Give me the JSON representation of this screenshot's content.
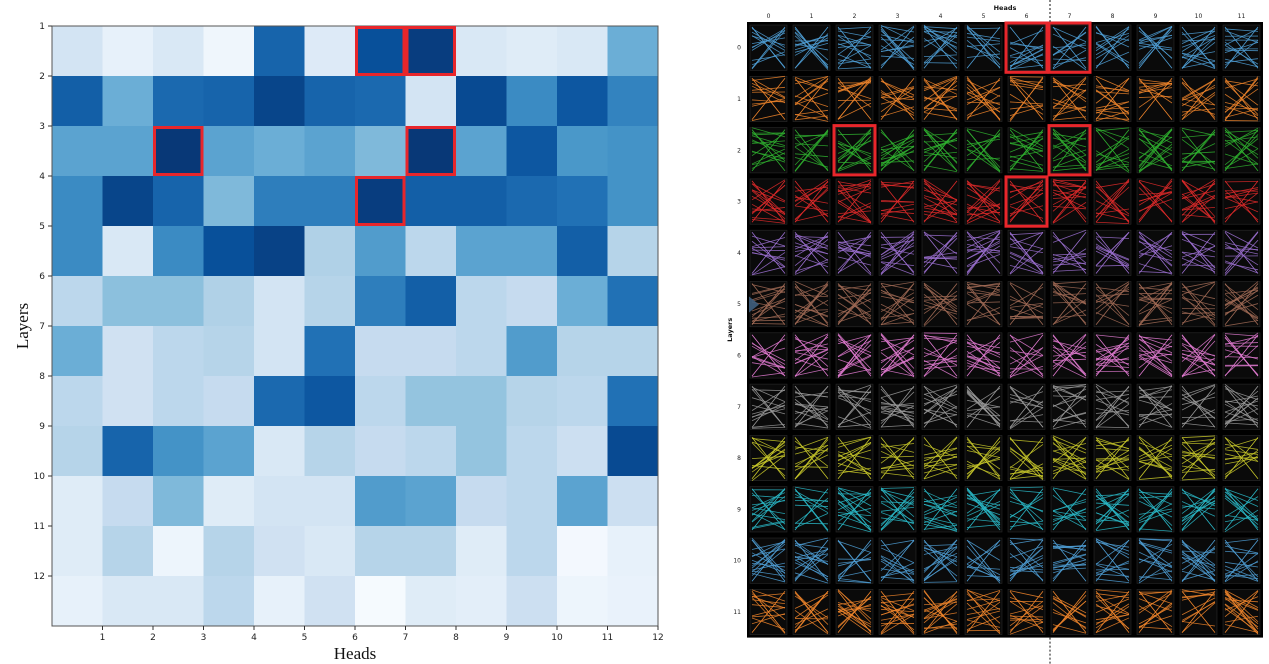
{
  "chart_data": [
    {
      "type": "heatmap",
      "title": "",
      "xlabel": "Heads",
      "ylabel": "Layers",
      "xticks": [
        "1",
        "2",
        "3",
        "4",
        "5",
        "6",
        "7",
        "8",
        "9",
        "10",
        "11",
        "12"
      ],
      "yticks": [
        "1",
        "2",
        "3",
        "4",
        "5",
        "6",
        "7",
        "8",
        "9",
        "10",
        "11",
        "12"
      ],
      "colormap": "Blues",
      "value_range": [
        0,
        1
      ],
      "values": [
        [
          0.18,
          0.08,
          0.15,
          0.04,
          0.8,
          0.13,
          0.88,
          0.95,
          0.15,
          0.12,
          0.15,
          0.5
        ],
        [
          0.82,
          0.5,
          0.78,
          0.8,
          0.92,
          0.8,
          0.78,
          0.18,
          0.9,
          0.65,
          0.85,
          0.68
        ],
        [
          0.55,
          0.55,
          0.97,
          0.55,
          0.5,
          0.55,
          0.45,
          0.97,
          0.55,
          0.85,
          0.6,
          0.62
        ],
        [
          0.65,
          0.92,
          0.8,
          0.45,
          0.7,
          0.7,
          0.95,
          0.82,
          0.82,
          0.78,
          0.75,
          0.62
        ],
        [
          0.65,
          0.15,
          0.65,
          0.88,
          0.93,
          0.32,
          0.58,
          0.28,
          0.55,
          0.55,
          0.82,
          0.3
        ],
        [
          0.28,
          0.42,
          0.42,
          0.32,
          0.18,
          0.3,
          0.7,
          0.82,
          0.28,
          0.25,
          0.5,
          0.75
        ],
        [
          0.5,
          0.2,
          0.28,
          0.3,
          0.18,
          0.75,
          0.25,
          0.25,
          0.28,
          0.58,
          0.3,
          0.3
        ],
        [
          0.28,
          0.2,
          0.28,
          0.25,
          0.78,
          0.85,
          0.28,
          0.4,
          0.4,
          0.3,
          0.28,
          0.75
        ],
        [
          0.3,
          0.8,
          0.62,
          0.55,
          0.15,
          0.3,
          0.25,
          0.28,
          0.4,
          0.28,
          0.22,
          0.9
        ],
        [
          0.12,
          0.25,
          0.45,
          0.12,
          0.18,
          0.18,
          0.58,
          0.55,
          0.25,
          0.28,
          0.55,
          0.22
        ],
        [
          0.12,
          0.3,
          0.05,
          0.3,
          0.2,
          0.15,
          0.3,
          0.3,
          0.12,
          0.28,
          0.02,
          0.08
        ],
        [
          0.08,
          0.15,
          0.15,
          0.28,
          0.08,
          0.2,
          0.01,
          0.12,
          0.1,
          0.22,
          0.05,
          0.07
        ]
      ],
      "highlighted_cells": [
        {
          "layer": 1,
          "head": 7
        },
        {
          "layer": 1,
          "head": 8
        },
        {
          "layer": 3,
          "head": 3
        },
        {
          "layer": 3,
          "head": 8
        },
        {
          "layer": 4,
          "head": 7
        }
      ],
      "highlight_color": "#e8262b"
    },
    {
      "type": "attention-head-grid",
      "title": "",
      "xlabel": "Heads",
      "ylabel": "Layers",
      "xticks": [
        "0",
        "1",
        "2",
        "3",
        "4",
        "5",
        "6",
        "7",
        "8",
        "9",
        "10",
        "11"
      ],
      "yticks": [
        "0",
        "1",
        "2",
        "3",
        "4",
        "5",
        "6",
        "7",
        "8",
        "9",
        "10",
        "11"
      ],
      "background": "#000000",
      "layer_colors": [
        "#4f9fd6",
        "#f0852b",
        "#2fb12f",
        "#e02a2a",
        "#9b6fd0",
        "#a06a55",
        "#e07ad0",
        "#9a9a9a",
        "#c8c82a",
        "#2ab9c8",
        "#4f9fd6",
        "#f0852b"
      ],
      "highlighted_cells": [
        {
          "layer": 0,
          "head": 6
        },
        {
          "layer": 0,
          "head": 7
        },
        {
          "layer": 2,
          "head": 2
        },
        {
          "layer": 2,
          "head": 7
        },
        {
          "layer": 3,
          "head": 6
        }
      ],
      "highlight_color": "#e8262b"
    }
  ],
  "page": {
    "left_xlabel": "Heads",
    "left_ylabel": "Layers",
    "right_title": "Heads",
    "right_ylabel": "Layers"
  }
}
